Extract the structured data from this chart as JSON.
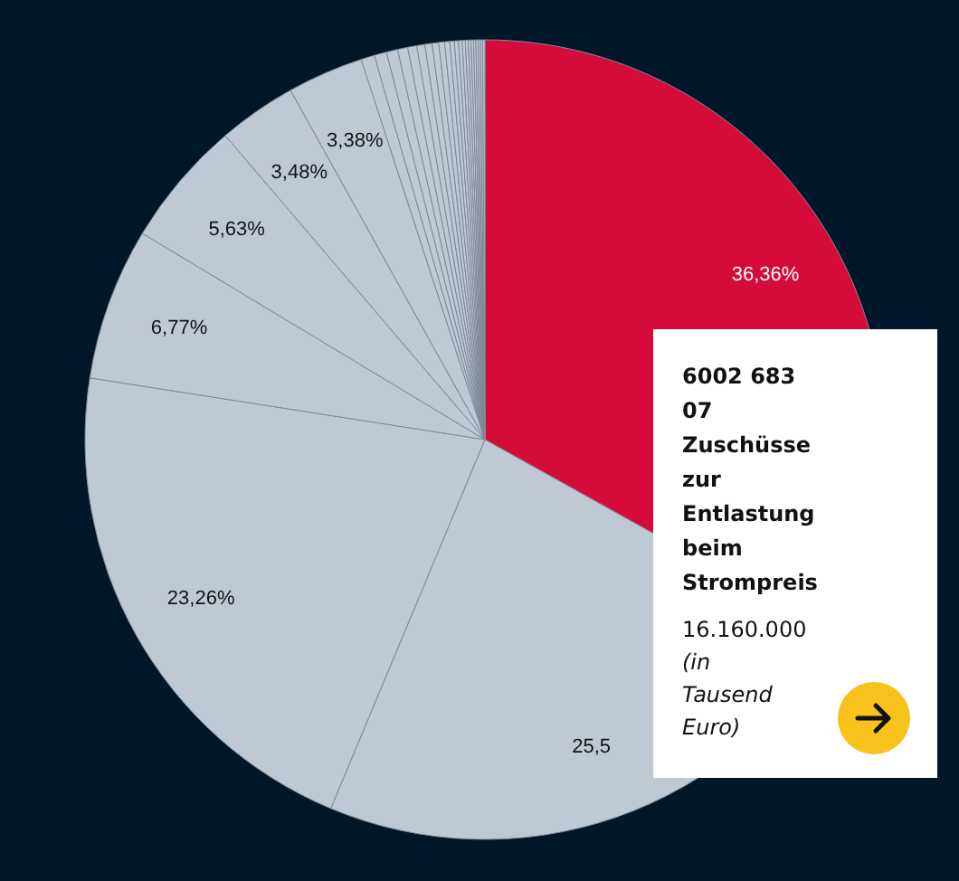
{
  "chart_data": {
    "type": "pie",
    "categories": [
      null,
      null,
      null,
      null,
      null,
      null,
      null,
      null,
      null,
      null,
      null,
      null,
      null,
      null,
      null,
      null,
      null,
      null,
      null,
      null,
      null,
      null,
      null,
      null,
      null,
      null,
      null,
      null,
      null
    ],
    "values": [
      36.36,
      25.5,
      23.26,
      6.77,
      5.63,
      3.48,
      3.38,
      0.6,
      0.55,
      0.5,
      0.45,
      0.4,
      0.36,
      0.32,
      0.29,
      0.26,
      0.23,
      0.2,
      0.18,
      0.16,
      0.14,
      0.13,
      0.12,
      0.11,
      0.1,
      0.1,
      0.1,
      0.1,
      0.1
    ],
    "value_labels": [
      "36,36%",
      "25,5",
      "23,26%",
      "6,77%",
      "5,63%",
      "3,48%",
      "3,38%",
      null,
      null,
      null,
      null,
      null,
      null,
      null,
      null,
      null,
      null,
      null,
      null,
      null,
      null,
      null,
      null,
      null,
      null,
      null,
      null,
      null,
      null
    ],
    "colors": [
      "#d50c3a",
      "#bfc9d4",
      "#bfc9d4",
      "#bfc9d4",
      "#bfc9d4",
      "#bfc9d4",
      "#bfc9d4",
      "#bfc9d4",
      "#bfc9d4",
      "#bfc9d4",
      "#bfc9d4",
      "#bfc9d4",
      "#bfc9d4",
      "#bfc9d4",
      "#bfc9d4",
      "#bfc9d4",
      "#bfc9d4",
      "#bfc9d4",
      "#bfc9d4",
      "#bfc9d4",
      "#bfc9d4",
      "#bfc9d4",
      "#bfc9d4",
      "#bfc9d4",
      "#bfc9d4",
      "#bfc9d4",
      "#bfc9d4",
      "#bfc9d4",
      "#bfc9d4"
    ],
    "annotations": [
      "6002 683 07 Zuschüsse zur Entlastung beim Strompreis",
      "16.160.000",
      "(in Tausend Euro)"
    ]
  }
}
